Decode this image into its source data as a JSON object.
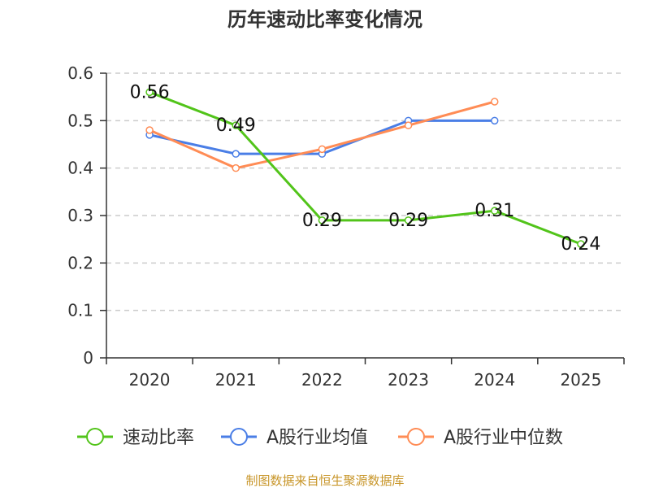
{
  "chart_data": {
    "type": "line",
    "title": "历年速动比率变化情况",
    "categories": [
      "2020",
      "2021",
      "2022",
      "2023",
      "2024",
      "2025"
    ],
    "ylim": [
      0,
      0.6
    ],
    "yticks": [
      "0",
      "0.1",
      "0.2",
      "0.3",
      "0.4",
      "0.5",
      "0.6"
    ],
    "grid": true,
    "legend_position": "bottom",
    "series": [
      {
        "name": "速动比率",
        "color": "#52c41a",
        "values": [
          0.56,
          0.49,
          0.29,
          0.29,
          0.31,
          0.24
        ],
        "labels": [
          "0.56",
          "0.49",
          "0.29",
          "0.29",
          "0.31",
          "0.24"
        ]
      },
      {
        "name": "A股行业均值",
        "color": "#4a7ee6",
        "values": [
          0.47,
          0.43,
          0.43,
          0.5,
          0.5,
          null
        ]
      },
      {
        "name": "A股行业中位数",
        "color": "#ff8c55",
        "values": [
          0.48,
          0.4,
          0.44,
          0.49,
          0.54,
          null
        ]
      }
    ],
    "source": "制图数据来自恒生聚源数据库"
  }
}
